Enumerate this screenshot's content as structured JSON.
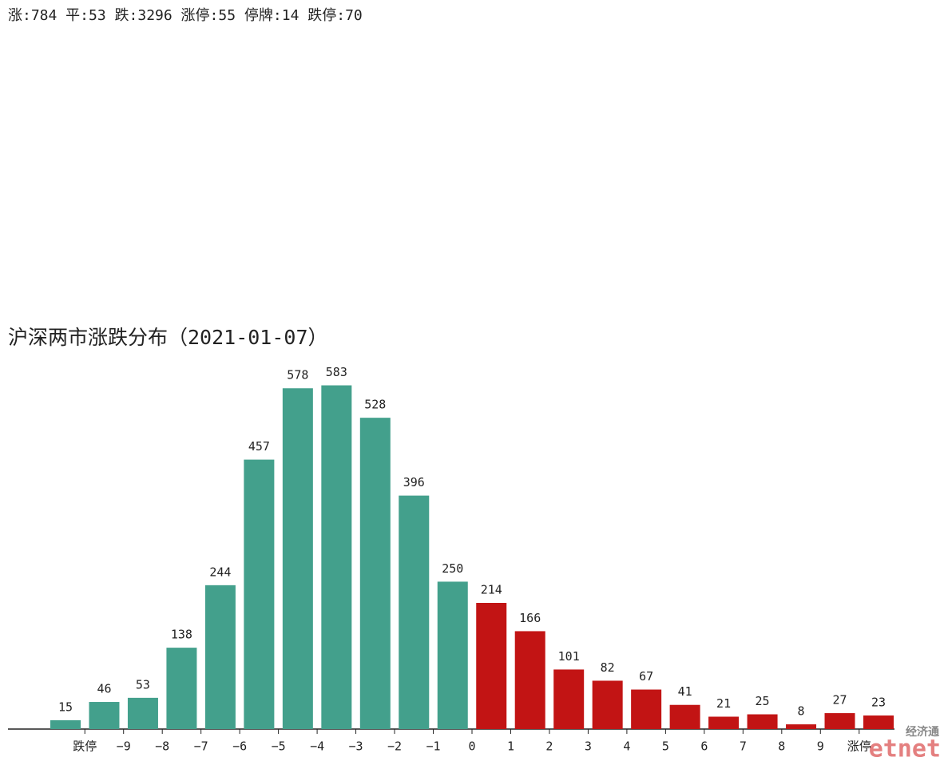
{
  "chart_data": {
    "type": "bar",
    "summary": "涨:784 平:53 跌:3296 涨停:55 停牌:14 跌停:70",
    "title": "沪深两市涨跌分布（2021-01-07）",
    "series": [
      {
        "color": "#43a08c",
        "values": [
          15,
          46,
          53,
          138,
          244,
          457,
          578,
          583,
          528,
          396,
          250
        ]
      },
      {
        "color": "#c21414",
        "values": [
          214,
          166,
          101,
          82,
          67,
          41,
          21,
          25,
          8,
          27,
          23
        ]
      }
    ],
    "boundary_labels": [
      "跌停",
      "−9",
      "−8",
      "−7",
      "−6",
      "−5",
      "−4",
      "−3",
      "−2",
      "−1",
      "0",
      "1",
      "2",
      "3",
      "4",
      "5",
      "6",
      "7",
      "8",
      "9",
      "涨停"
    ],
    "ylim": [
      0,
      600
    ],
    "watermark": {
      "top": "经济通",
      "brand": "etnet"
    }
  }
}
